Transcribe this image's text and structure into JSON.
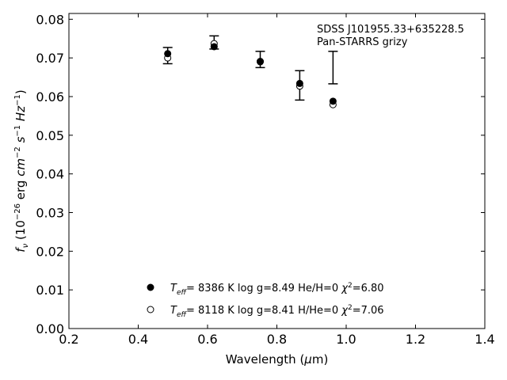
{
  "chart_data": {
    "type": "scatter",
    "xlabel": "Wavelength (μm)",
    "ylabel": "f_ν (10^-26 erg cm^-2 s^-1 Hz^-1)",
    "xlim": [
      0.2,
      1.4
    ],
    "ylim": [
      0.0,
      0.0815
    ],
    "xticks": [
      0.2,
      0.4,
      0.6,
      0.8,
      1.0,
      1.2,
      1.4
    ],
    "xtick_labels": [
      "0.2",
      "0.4",
      "0.6",
      "0.8",
      "1.0",
      "1.2",
      "1.4"
    ],
    "yticks": [
      0.0,
      0.01,
      0.02,
      0.03,
      0.04,
      0.05,
      0.06,
      0.07,
      0.08
    ],
    "ytick_labels": [
      "0.00",
      "0.01",
      "0.02",
      "0.03",
      "0.04",
      "0.05",
      "0.06",
      "0.07",
      "0.08"
    ],
    "grid": false,
    "annotation": {
      "line1": "SDSS J101955.33+635228.5",
      "line2": "Pan-STARRS grizy"
    },
    "observed": {
      "x": [
        0.485,
        0.619,
        0.752,
        0.866,
        0.962
      ],
      "y": [
        0.0706,
        0.074,
        0.0696,
        0.0629,
        0.0675
      ],
      "yerr": [
        0.0021,
        0.0017,
        0.0021,
        0.0038,
        0.0042
      ]
    },
    "series": [
      {
        "marker": "filled-circle",
        "label_parts": [
          "T",
          "eff",
          "=  8386 K  log g=8.49  He/H=0  ",
          "χ",
          "2",
          "=6.80"
        ],
        "x": [
          0.485,
          0.619,
          0.752,
          0.866,
          0.962
        ],
        "y": [
          0.0711,
          0.0729,
          0.0691,
          0.0634,
          0.0588
        ]
      },
      {
        "marker": "open-circle",
        "label_parts": [
          "T",
          "eff",
          "=  8118 K  log g=8.41  H/He=0  ",
          "χ",
          "2",
          "=7.06"
        ],
        "x": [
          0.485,
          0.619,
          0.752,
          0.866,
          0.962
        ],
        "y": [
          0.07,
          0.0737,
          0.069,
          0.0627,
          0.0579
        ]
      }
    ],
    "legend_location": "lower-center",
    "colors": {
      "marker": "#000000",
      "axes": "#000000",
      "background": "#ffffff"
    }
  }
}
